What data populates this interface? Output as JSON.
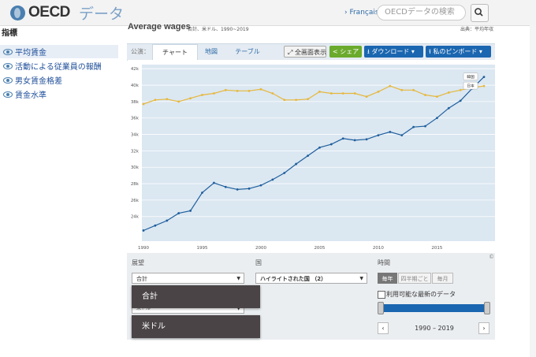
{
  "header": {
    "logo_text": "OECD",
    "logo_sub": "データ",
    "language_link": "› Français",
    "search_placeholder": "OECDデータの検索"
  },
  "sidebar": {
    "heading": "指標",
    "items": [
      {
        "label": "平均賃金",
        "selected": true
      },
      {
        "label": "活動による従業員の報酬",
        "selected": false
      },
      {
        "label": "男女賃金格差",
        "selected": false
      },
      {
        "label": "賃金水準",
        "selected": false
      }
    ]
  },
  "indicator": {
    "title": "Average wages",
    "subtitle": "合計、米ドル、1990~2019",
    "source": "出典：平均年収"
  },
  "toolbar": {
    "perspective_label": "公演：",
    "tabs": [
      {
        "label": "チャート",
        "active": true
      },
      {
        "label": "地図",
        "active": false
      },
      {
        "label": "テーブル",
        "active": false
      }
    ],
    "fullscreen_label": "全画面表示",
    "share_label": "シェア",
    "download_label": "ダウンロード ▾",
    "pin_label": "私のピンボード ▾"
  },
  "chart_data": {
    "type": "line",
    "x": [
      1990,
      1991,
      1992,
      1993,
      1994,
      1995,
      1996,
      1997,
      1998,
      1999,
      2000,
      2001,
      2002,
      2003,
      2004,
      2005,
      2006,
      2007,
      2008,
      2009,
      2010,
      2011,
      2012,
      2013,
      2014,
      2015,
      2016,
      2017,
      2018,
      2019
    ],
    "series": [
      {
        "name": "韓国",
        "color": "#1f5f9e",
        "values": [
          22.3,
          22.9,
          23.5,
          24.4,
          24.7,
          26.9,
          28.1,
          27.6,
          27.3,
          27.4,
          27.8,
          28.5,
          29.3,
          30.4,
          31.4,
          32.4,
          32.8,
          33.5,
          33.3,
          33.4,
          33.9,
          34.3,
          33.9,
          34.9,
          35.0,
          36.0,
          37.2,
          38.1,
          39.6,
          41.0
        ]
      },
      {
        "name": "日本",
        "color": "#e6b83c",
        "values": [
          37.7,
          38.2,
          38.3,
          38.0,
          38.4,
          38.8,
          39.0,
          39.4,
          39.3,
          39.3,
          39.5,
          39.0,
          38.2,
          38.2,
          38.3,
          39.2,
          39.0,
          39.0,
          39.0,
          38.6,
          39.2,
          39.9,
          39.4,
          39.4,
          38.8,
          38.6,
          39.1,
          39.4,
          39.7,
          39.9
        ]
      }
    ],
    "ylim": [
      21,
      42.5
    ],
    "yticks": [
      24,
      26,
      28,
      30,
      32,
      34,
      36,
      38,
      40,
      42
    ],
    "ytick_labels": [
      "24k",
      "26k",
      "28k",
      "30k",
      "32k",
      "34k",
      "36k",
      "38k",
      "40k",
      "42k"
    ],
    "xticks": [
      1990,
      1995,
      2000,
      2005,
      2010,
      2015
    ],
    "grid": true
  },
  "controls": {
    "perspective_label": "展望",
    "measure_value": "合計",
    "country_label": "国",
    "country_value": "ハイライトされた国 （2）",
    "time_label": "時間",
    "freq_options": [
      {
        "label": "毎年",
        "on": true
      },
      {
        "label": "四半期ごと",
        "on": false
      },
      {
        "label": "毎月",
        "on": false
      }
    ],
    "latest_label": "利用可能な最新のデータ",
    "range_label": "1990 – 2019",
    "hidden_unit": "米ドル",
    "popup_items": [
      "合計",
      "米ドル"
    ],
    "copyright": "©"
  }
}
